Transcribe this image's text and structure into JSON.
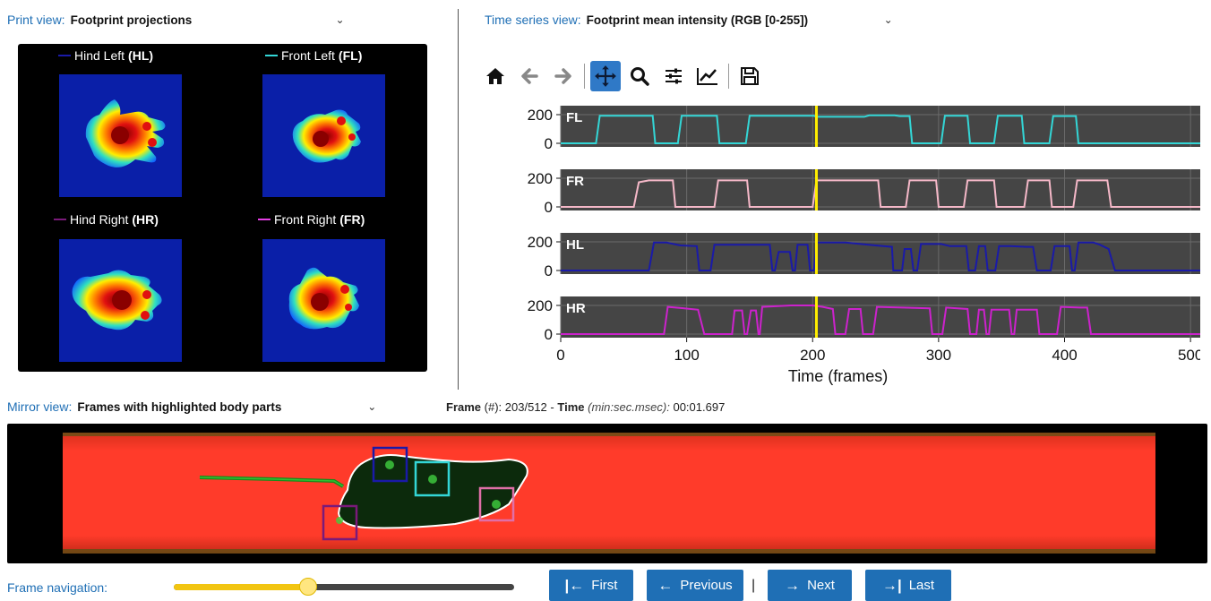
{
  "print_view": {
    "label": "Print view:",
    "selected": "Footprint projections",
    "paws": [
      {
        "name": "Hind Left",
        "abbr": "(HL)",
        "color": "#1a1aa8"
      },
      {
        "name": "Front Left",
        "abbr": "(FL)",
        "color": "#33d6d6"
      },
      {
        "name": "Hind Right",
        "abbr": "(HR)",
        "color": "#7a1a7a"
      },
      {
        "name": "Front Right",
        "abbr": "(FR)",
        "color": "#e43ee4"
      }
    ]
  },
  "time_series_view": {
    "label": "Time series view:",
    "selected": "Footprint mean intensity (RGB [0-255])"
  },
  "toolbar": {
    "icons": [
      "home-icon",
      "back-arrow-icon",
      "forward-arrow-icon",
      "pan-icon",
      "zoom-icon",
      "subplots-config-icon",
      "edit-axis-icon",
      "save-icon"
    ],
    "active": "pan-icon"
  },
  "chart_data": {
    "type": "line",
    "xlabel": "Time (frames)",
    "xlim": [
      0,
      512
    ],
    "x_ticks": [
      "0",
      "100",
      "200",
      "300",
      "400",
      "500"
    ],
    "y_ticks": [
      "0",
      "200"
    ],
    "ylim": [
      0,
      200
    ],
    "current_frame": 203,
    "grid": true,
    "series": [
      {
        "name": "FL",
        "color": "#33d6d6",
        "points": [
          [
            0,
            0
          ],
          [
            28,
            0
          ],
          [
            31,
            192
          ],
          [
            73,
            192
          ],
          [
            75,
            0
          ],
          [
            93,
            0
          ],
          [
            96,
            192
          ],
          [
            124,
            192
          ],
          [
            126,
            0
          ],
          [
            147,
            0
          ],
          [
            150,
            192
          ],
          [
            201,
            192
          ],
          [
            203,
            185
          ],
          [
            241,
            185
          ],
          [
            245,
            195
          ],
          [
            265,
            195
          ],
          [
            269,
            190
          ],
          [
            277,
            190
          ],
          [
            279,
            0
          ],
          [
            302,
            0
          ],
          [
            305,
            192
          ],
          [
            323,
            192
          ],
          [
            325,
            0
          ],
          [
            344,
            0
          ],
          [
            347,
            192
          ],
          [
            366,
            192
          ],
          [
            368,
            0
          ],
          [
            388,
            0
          ],
          [
            391,
            190
          ],
          [
            409,
            190
          ],
          [
            411,
            0
          ],
          [
            512,
            0
          ]
        ]
      },
      {
        "name": "FR",
        "color": "#f5b8c8",
        "points": [
          [
            0,
            0
          ],
          [
            58,
            0
          ],
          [
            62,
            172
          ],
          [
            70,
            185
          ],
          [
            89,
            185
          ],
          [
            91,
            0
          ],
          [
            122,
            0
          ],
          [
            125,
            185
          ],
          [
            148,
            185
          ],
          [
            150,
            0
          ],
          [
            200,
            0
          ],
          [
            203,
            185
          ],
          [
            252,
            185
          ],
          [
            254,
            0
          ],
          [
            274,
            0
          ],
          [
            277,
            185
          ],
          [
            298,
            185
          ],
          [
            300,
            0
          ],
          [
            320,
            0
          ],
          [
            323,
            185
          ],
          [
            344,
            185
          ],
          [
            346,
            0
          ],
          [
            368,
            0
          ],
          [
            371,
            185
          ],
          [
            388,
            185
          ],
          [
            390,
            0
          ],
          [
            407,
            0
          ],
          [
            410,
            185
          ],
          [
            434,
            185
          ],
          [
            437,
            0
          ],
          [
            512,
            0
          ]
        ]
      },
      {
        "name": "HL",
        "color": "#1a1aa8",
        "points": [
          [
            0,
            0
          ],
          [
            70,
            0
          ],
          [
            74,
            195
          ],
          [
            84,
            195
          ],
          [
            95,
            175
          ],
          [
            108,
            170
          ],
          [
            110,
            0
          ],
          [
            119,
            0
          ],
          [
            122,
            180
          ],
          [
            166,
            180
          ],
          [
            168,
            0
          ],
          [
            170,
            0
          ],
          [
            173,
            130
          ],
          [
            182,
            130
          ],
          [
            184,
            0
          ],
          [
            186,
            0
          ],
          [
            188,
            180
          ],
          [
            196,
            180
          ],
          [
            198,
            0
          ],
          [
            201,
            0
          ],
          [
            203,
            195
          ],
          [
            226,
            195
          ],
          [
            250,
            175
          ],
          [
            263,
            165
          ],
          [
            264,
            0
          ],
          [
            271,
            0
          ],
          [
            273,
            150
          ],
          [
            278,
            150
          ],
          [
            280,
            0
          ],
          [
            283,
            0
          ],
          [
            286,
            185
          ],
          [
            302,
            185
          ],
          [
            309,
            170
          ],
          [
            322,
            170
          ],
          [
            324,
            0
          ],
          [
            329,
            0
          ],
          [
            332,
            170
          ],
          [
            337,
            170
          ],
          [
            339,
            0
          ],
          [
            345,
            0
          ],
          [
            348,
            170
          ],
          [
            357,
            170
          ],
          [
            369,
            165
          ],
          [
            375,
            165
          ],
          [
            378,
            0
          ],
          [
            389,
            0
          ],
          [
            392,
            170
          ],
          [
            404,
            170
          ],
          [
            406,
            0
          ],
          [
            408,
            0
          ],
          [
            411,
            195
          ],
          [
            423,
            195
          ],
          [
            428,
            180
          ],
          [
            435,
            150
          ],
          [
            440,
            0
          ],
          [
            512,
            0
          ]
        ]
      },
      {
        "name": "HR",
        "color": "#cc22cc",
        "points": [
          [
            0,
            0
          ],
          [
            82,
            0
          ],
          [
            85,
            190
          ],
          [
            98,
            180
          ],
          [
            109,
            170
          ],
          [
            114,
            0
          ],
          [
            136,
            0
          ],
          [
            138,
            165
          ],
          [
            144,
            165
          ],
          [
            146,
            0
          ],
          [
            148,
            0
          ],
          [
            151,
            165
          ],
          [
            155,
            165
          ],
          [
            157,
            0
          ],
          [
            158,
            0
          ],
          [
            160,
            190
          ],
          [
            183,
            200
          ],
          [
            200,
            200
          ],
          [
            208,
            190
          ],
          [
            216,
            175
          ],
          [
            218,
            0
          ],
          [
            226,
            0
          ],
          [
            229,
            175
          ],
          [
            238,
            175
          ],
          [
            240,
            0
          ],
          [
            248,
            0
          ],
          [
            251,
            190
          ],
          [
            293,
            180
          ],
          [
            295,
            0
          ],
          [
            303,
            0
          ],
          [
            306,
            185
          ],
          [
            323,
            175
          ],
          [
            325,
            0
          ],
          [
            330,
            0
          ],
          [
            332,
            170
          ],
          [
            336,
            170
          ],
          [
            338,
            0
          ],
          [
            340,
            0
          ],
          [
            342,
            170
          ],
          [
            356,
            170
          ],
          [
            358,
            0
          ],
          [
            360,
            0
          ],
          [
            362,
            170
          ],
          [
            378,
            170
          ],
          [
            380,
            0
          ],
          [
            394,
            0
          ],
          [
            397,
            190
          ],
          [
            412,
            185
          ],
          [
            418,
            185
          ],
          [
            421,
            0
          ],
          [
            512,
            0
          ]
        ]
      }
    ]
  },
  "mirror_view": {
    "label": "Mirror view:",
    "selected": "Frames with highlighted body parts",
    "frame_label": "Frame",
    "frame_hint": "(#):",
    "frame_value": "203/512",
    "time_label": "Time",
    "time_hint": "(min:sec.msec):",
    "time_value": "00:01.697",
    "frame_sep": "-"
  },
  "navigation": {
    "label": "Frame navigation:",
    "slider_fraction": 0.396,
    "first": "First",
    "previous": "Previous",
    "separator": "|",
    "next": "Next",
    "last": "Last"
  }
}
